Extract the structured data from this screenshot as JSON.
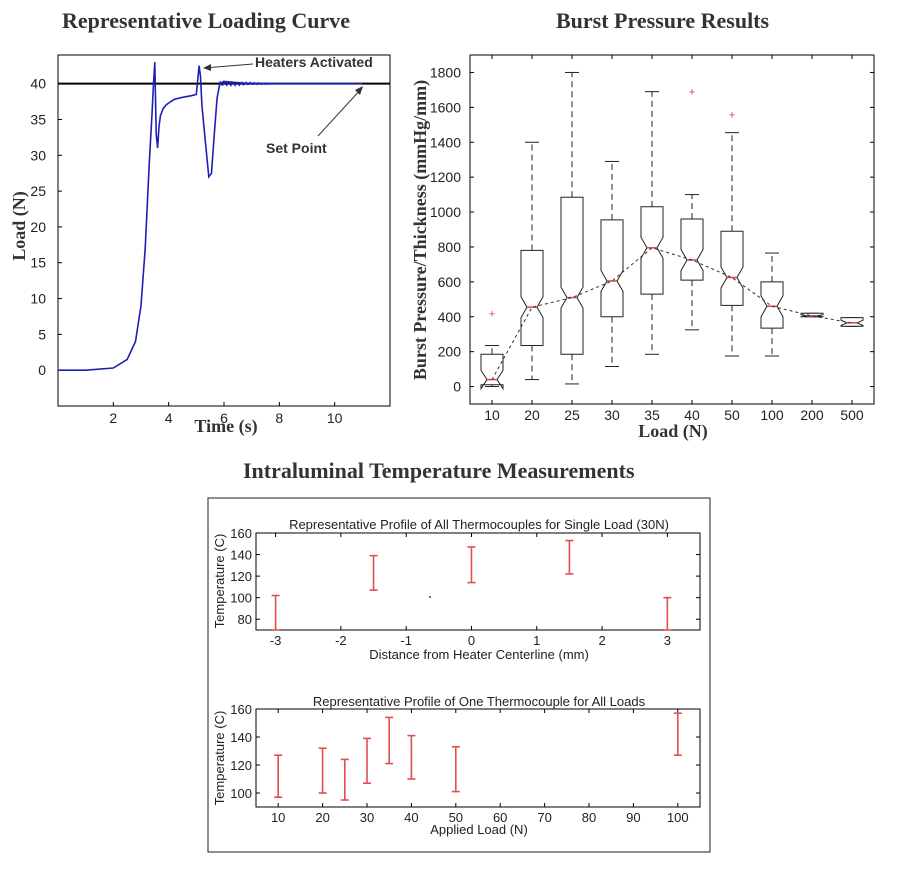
{
  "figure_titles": {
    "loading": "Representative Loading Curve",
    "burst": "Burst Pressure Results",
    "temperature": "Intraluminal Temperature Measurements"
  },
  "colors": {
    "curve": "#1f1fb4",
    "setpoint": "#000000",
    "median": "#e04040",
    "errorbar": "#e05050",
    "box": "#222222"
  },
  "chart_data": [
    {
      "id": "loading",
      "type": "line",
      "title": "Representative Loading Curve",
      "xlabel": "Time (s)",
      "ylabel": "Load (N)",
      "xlim": [
        0,
        12
      ],
      "ylim": [
        -5,
        44
      ],
      "xticks": [
        2,
        4,
        6,
        8,
        10
      ],
      "yticks": [
        0,
        5,
        10,
        15,
        20,
        25,
        30,
        35,
        40
      ],
      "setpoint": 40,
      "annotations": [
        {
          "text": "Heaters Activated",
          "target": [
            5.1,
            42
          ]
        },
        {
          "text": "Set Point",
          "target": [
            11.0,
            40
          ]
        }
      ],
      "series": [
        {
          "x": [
            0,
            1,
            2,
            2.5,
            2.8,
            3.0,
            3.15,
            3.3,
            3.4,
            3.45,
            3.5,
            3.55,
            3.6,
            3.65,
            3.7,
            3.8,
            3.9,
            4.0,
            4.2,
            4.5,
            4.8,
            5.0,
            5.1,
            5.15,
            5.2,
            5.3,
            5.45,
            5.55,
            5.65,
            5.75,
            5.85,
            6.0,
            6.3,
            6.6,
            7.0,
            7.5,
            8.0,
            8.5,
            9.0,
            9.5,
            10.0,
            10.5,
            11.0
          ],
          "y": [
            0,
            0,
            0.3,
            1.5,
            4,
            9,
            17,
            29,
            36,
            40,
            43,
            33,
            31,
            34,
            35.5,
            36.5,
            37,
            37.3,
            37.8,
            38.1,
            38.3,
            38.5,
            42.5,
            41,
            37,
            33,
            27,
            27.5,
            33,
            38,
            40,
            40.3,
            40.2,
            40.1,
            40,
            40,
            40,
            40,
            40,
            40,
            40,
            40,
            40
          ]
        }
      ]
    },
    {
      "id": "burst",
      "type": "box",
      "title": "Burst Pressure Results",
      "xlabel": "Load (N)",
      "ylabel": "Burst Pressure/Thickness (mmHg/mm)",
      "ylim": [
        -100,
        1900
      ],
      "yticks": [
        0,
        200,
        400,
        600,
        800,
        1000,
        1200,
        1400,
        1600,
        1800
      ],
      "categories": [
        "10",
        "20",
        "25",
        "30",
        "35",
        "40",
        "50",
        "100",
        "200",
        "500"
      ],
      "boxes": [
        {
          "min": 0,
          "q1": 10,
          "median": 40,
          "q3": 185,
          "max": 235,
          "outliers": [
            420
          ]
        },
        {
          "min": 40,
          "q1": 235,
          "median": 455,
          "q3": 780,
          "max": 1400,
          "outliers": []
        },
        {
          "min": 15,
          "q1": 185,
          "median": 510,
          "q3": 1085,
          "max": 1800,
          "outliers": []
        },
        {
          "min": 115,
          "q1": 400,
          "median": 605,
          "q3": 955,
          "max": 1290,
          "outliers": []
        },
        {
          "min": 185,
          "q1": 530,
          "median": 795,
          "q3": 1030,
          "max": 1690,
          "outliers": []
        },
        {
          "min": 325,
          "q1": 610,
          "median": 725,
          "q3": 960,
          "max": 1100,
          "outliers": [
            1690
          ]
        },
        {
          "min": 175,
          "q1": 465,
          "median": 625,
          "q3": 890,
          "max": 1455,
          "outliers": [
            1560
          ]
        },
        {
          "min": 175,
          "q1": 335,
          "median": 460,
          "q3": 600,
          "max": 765,
          "outliers": []
        },
        {
          "min": 400,
          "q1": 400,
          "median": 405,
          "q3": 420,
          "max": 420,
          "outliers": []
        },
        {
          "min": 345,
          "q1": 345,
          "median": 365,
          "q3": 395,
          "max": 395,
          "outliers": []
        }
      ]
    },
    {
      "id": "temp_distance",
      "type": "errorbar",
      "title": "Representative Profile of All Thermocouples for Single Load (30N)",
      "xlabel": "Distance from Heater Centerline (mm)",
      "ylabel": "Temperature (C)",
      "xlim": [
        -3.3,
        3.5
      ],
      "ylim": [
        70,
        160
      ],
      "xticks": [
        -3,
        -2,
        -1,
        0,
        1,
        2,
        3
      ],
      "yticks": [
        80,
        100,
        120,
        140,
        160
      ],
      "points": [
        {
          "x": -3,
          "low": 70,
          "high": 102
        },
        {
          "x": -1.5,
          "low": 107,
          "high": 139
        },
        {
          "x": 0,
          "low": 114,
          "high": 147
        },
        {
          "x": 1.5,
          "low": 122,
          "high": 153
        },
        {
          "x": 3,
          "low": 70,
          "high": 100
        }
      ]
    },
    {
      "id": "temp_load",
      "type": "errorbar",
      "title": "Representative Profile of One Thermocouple for All Loads",
      "xlabel": "Applied Load (N)",
      "ylabel": "Temperature (C)",
      "xlim": [
        5,
        105
      ],
      "ylim": [
        90,
        160
      ],
      "xticks": [
        10,
        20,
        30,
        40,
        50,
        60,
        70,
        80,
        90,
        100
      ],
      "yticks": [
        100,
        120,
        140,
        160
      ],
      "points": [
        {
          "x": 10,
          "low": 97,
          "high": 127
        },
        {
          "x": 20,
          "low": 100,
          "high": 132
        },
        {
          "x": 25,
          "low": 95,
          "high": 124
        },
        {
          "x": 30,
          "low": 107,
          "high": 139
        },
        {
          "x": 35,
          "low": 121,
          "high": 154
        },
        {
          "x": 40,
          "low": 110,
          "high": 141
        },
        {
          "x": 50,
          "low": 101,
          "high": 133
        },
        {
          "x": 100,
          "low": 127,
          "high": 157
        }
      ]
    }
  ]
}
